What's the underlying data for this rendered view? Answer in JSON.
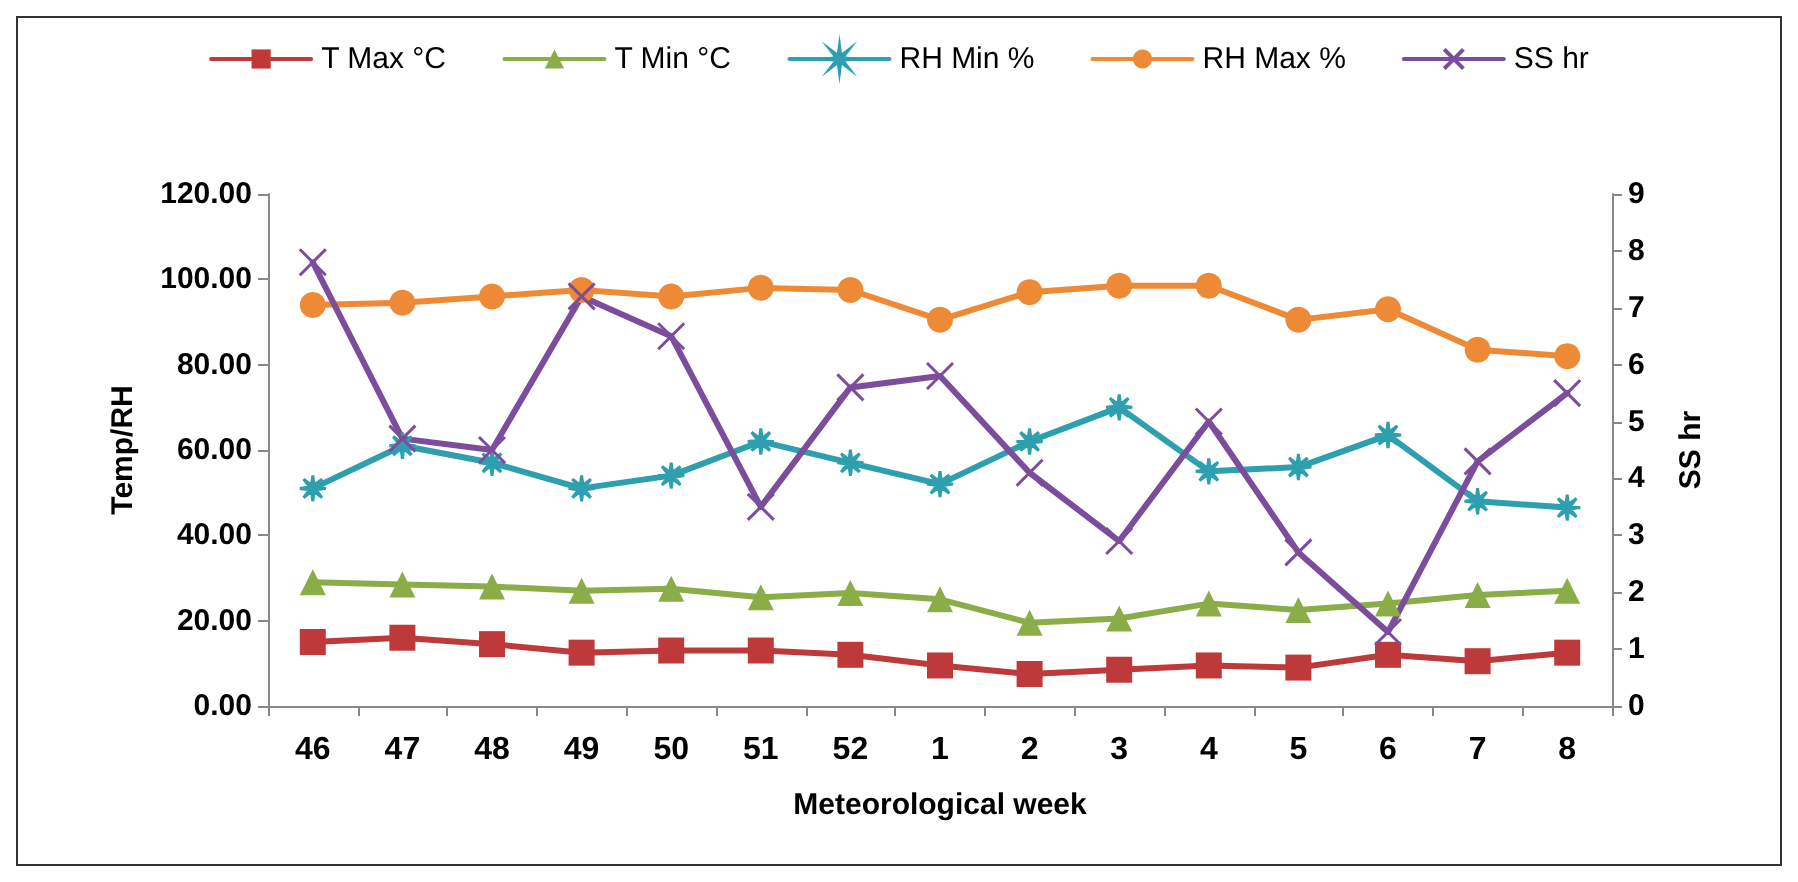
{
  "chart_data": {
    "type": "line",
    "xlabel": "Meteorological week",
    "ylabel": "Temp/RH",
    "y2label": "SS hr",
    "categories": [
      "46",
      "47",
      "48",
      "49",
      "50",
      "51",
      "52",
      "1",
      "2",
      "3",
      "4",
      "5",
      "6",
      "7",
      "8"
    ],
    "series": [
      {
        "name": "T Max °C",
        "color": "#be3a3a",
        "marker": "square",
        "values": [
          15,
          16,
          14.5,
          12.5,
          13,
          13,
          12,
          9.5,
          7.5,
          8.5,
          9.5,
          9,
          12,
          10.5,
          12.5
        ]
      },
      {
        "name": "T Min °C",
        "color": "#8aad48",
        "marker": "triangle",
        "values": [
          29,
          28.5,
          28,
          27,
          27.5,
          25.5,
          26.5,
          25,
          19.5,
          20.5,
          24,
          22.5,
          24,
          26,
          27
        ]
      },
      {
        "name": "RH Min %",
        "color": "#2e9fae",
        "marker": "star",
        "values": [
          51,
          61,
          57,
          51,
          54,
          62,
          57,
          52,
          62,
          70,
          55,
          56,
          63.5,
          48,
          46.5
        ]
      },
      {
        "name": "RH Max %",
        "color": "#ee8a35",
        "marker": "circle",
        "values": [
          94,
          94.5,
          96,
          97.5,
          96,
          98,
          97.5,
          90.5,
          97,
          98.5,
          98.5,
          90.5,
          93,
          83.5,
          82
        ]
      },
      {
        "name": "SS hr",
        "color": "#7b4d9c",
        "marker": "cross",
        "axis": "y2",
        "values": [
          7.8,
          4.7,
          4.5,
          7.2,
          6.5,
          3.5,
          5.6,
          5.8,
          4.1,
          2.9,
          5.0,
          2.7,
          1.3,
          4.3,
          5.5
        ]
      }
    ],
    "ylim": [
      0,
      120
    ],
    "yticks": [
      {
        "value": 0,
        "label": "0.00"
      },
      {
        "value": 20,
        "label": "20.00"
      },
      {
        "value": 40,
        "label": "40.00"
      },
      {
        "value": 60,
        "label": "60.00"
      },
      {
        "value": 80,
        "label": "80.00"
      },
      {
        "value": 100,
        "label": "100.00"
      },
      {
        "value": 120,
        "label": "120.00"
      }
    ],
    "y2lim": [
      0,
      9
    ],
    "y2ticks": [
      0,
      1,
      2,
      3,
      4,
      5,
      6,
      7,
      8,
      9
    ],
    "legend": "top",
    "grid": false,
    "line_style": "solid"
  }
}
